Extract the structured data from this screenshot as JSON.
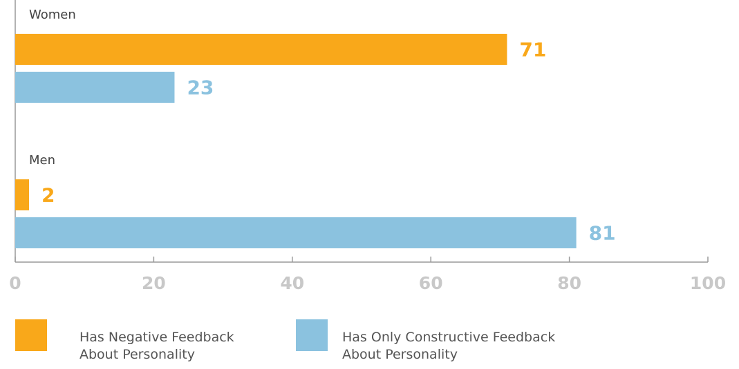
{
  "chart_data": {
    "type": "bar",
    "categories": [
      "Women",
      "Men"
    ],
    "series": [
      {
        "name": "Has Negative Feedback About Personality",
        "color": "#f9a81a",
        "values": [
          71,
          2
        ]
      },
      {
        "name": "Has Only Constructive Feedback About Personality",
        "color": "#8bc2df",
        "values": [
          23,
          81
        ]
      }
    ],
    "xlim": [
      0,
      100
    ],
    "xticks": [
      0,
      20,
      40,
      60,
      80,
      100
    ]
  }
}
